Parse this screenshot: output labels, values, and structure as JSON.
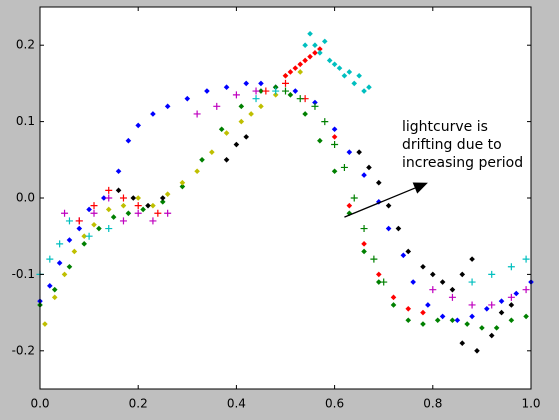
{
  "chart_data": {
    "type": "scatter",
    "title": "",
    "xlabel": "",
    "ylabel": "",
    "xlim": [
      0.0,
      1.0
    ],
    "ylim": [
      -0.25,
      0.25
    ],
    "xticks": [
      "0.0",
      "0.2",
      "0.4",
      "0.6",
      "0.8",
      "1.0"
    ],
    "yticks": [
      "-0.2",
      "-0.1",
      "0.0",
      "0.1",
      "0.2"
    ],
    "grid": false,
    "legend": "none",
    "annotation": {
      "lines": [
        "lightcurve is",
        "drifting due to",
        "increasing period"
      ],
      "arrow_from": [
        0.62,
        -0.025
      ],
      "arrow_to": [
        0.79,
        0.02
      ]
    },
    "series": [
      {
        "color": "#0000ff",
        "marker": "diamond",
        "points": [
          [
            0.0,
            -0.135
          ],
          [
            0.02,
            -0.115
          ],
          [
            0.04,
            -0.085
          ],
          [
            0.06,
            -0.055
          ],
          [
            0.08,
            -0.04
          ],
          [
            0.1,
            -0.015
          ],
          [
            0.13,
            0.0
          ],
          [
            0.16,
            0.035
          ],
          [
            0.18,
            0.075
          ],
          [
            0.2,
            0.095
          ],
          [
            0.23,
            0.11
          ],
          [
            0.26,
            0.12
          ],
          [
            0.3,
            0.13
          ],
          [
            0.34,
            0.14
          ],
          [
            0.38,
            0.145
          ],
          [
            0.42,
            0.15
          ],
          [
            0.45,
            0.15
          ],
          [
            0.48,
            0.145
          ],
          [
            0.52,
            0.14
          ],
          [
            0.56,
            0.125
          ],
          [
            0.6,
            0.09
          ],
          [
            0.63,
            0.06
          ],
          [
            0.66,
            0.03
          ],
          [
            0.69,
            -0.005
          ],
          [
            0.71,
            -0.04
          ],
          [
            0.74,
            -0.075
          ],
          [
            0.76,
            -0.11
          ],
          [
            0.79,
            -0.14
          ],
          [
            0.82,
            -0.155
          ],
          [
            0.85,
            -0.16
          ],
          [
            0.88,
            -0.155
          ],
          [
            0.91,
            -0.145
          ],
          [
            0.94,
            -0.135
          ],
          [
            0.97,
            -0.125
          ],
          [
            1.0,
            -0.11
          ]
        ]
      },
      {
        "color": "#008000",
        "marker": "diamond",
        "points": [
          [
            0.0,
            -0.14
          ],
          [
            0.03,
            -0.12
          ],
          [
            0.06,
            -0.09
          ],
          [
            0.09,
            -0.06
          ],
          [
            0.12,
            -0.04
          ],
          [
            0.15,
            -0.025
          ],
          [
            0.18,
            -0.02
          ],
          [
            0.21,
            -0.015
          ],
          [
            0.25,
            -0.005
          ],
          [
            0.29,
            0.015
          ],
          [
            0.33,
            0.05
          ],
          [
            0.37,
            0.09
          ],
          [
            0.41,
            0.12
          ],
          [
            0.45,
            0.14
          ],
          [
            0.48,
            0.145
          ],
          [
            0.51,
            0.135
          ],
          [
            0.54,
            0.11
          ],
          [
            0.57,
            0.075
          ],
          [
            0.6,
            0.035
          ],
          [
            0.63,
            -0.02
          ],
          [
            0.66,
            -0.07
          ],
          [
            0.69,
            -0.11
          ],
          [
            0.72,
            -0.14
          ],
          [
            0.75,
            -0.16
          ],
          [
            0.78,
            -0.165
          ],
          [
            0.81,
            -0.16
          ],
          [
            0.84,
            -0.16
          ],
          [
            0.87,
            -0.165
          ],
          [
            0.9,
            -0.17
          ],
          [
            0.93,
            -0.17
          ],
          [
            0.96,
            -0.16
          ],
          [
            0.99,
            -0.155
          ]
        ]
      },
      {
        "color": "#bfbf00",
        "marker": "diamond",
        "points": [
          [
            0.01,
            -0.165
          ],
          [
            0.03,
            -0.13
          ],
          [
            0.05,
            -0.1
          ],
          [
            0.07,
            -0.07
          ],
          [
            0.09,
            -0.05
          ],
          [
            0.11,
            -0.035
          ],
          [
            0.14,
            -0.015
          ],
          [
            0.17,
            -0.01
          ],
          [
            0.2,
            0.0
          ],
          [
            0.23,
            -0.01
          ],
          [
            0.26,
            0.005
          ],
          [
            0.29,
            0.02
          ],
          [
            0.32,
            0.035
          ],
          [
            0.35,
            0.06
          ],
          [
            0.38,
            0.085
          ],
          [
            0.41,
            0.1
          ],
          [
            0.43,
            0.11
          ],
          [
            0.45,
            0.12
          ],
          [
            0.48,
            0.135
          ],
          [
            0.5,
            0.16
          ],
          [
            0.53,
            0.165
          ]
        ]
      },
      {
        "color": "#ff0000",
        "marker": "diamond",
        "points": [
          [
            0.5,
            0.16
          ],
          [
            0.51,
            0.165
          ],
          [
            0.52,
            0.17
          ],
          [
            0.53,
            0.175
          ],
          [
            0.54,
            0.18
          ],
          [
            0.55,
            0.185
          ],
          [
            0.56,
            0.19
          ],
          [
            0.57,
            0.195
          ],
          [
            0.6,
            0.08
          ],
          [
            0.63,
            -0.01
          ],
          [
            0.66,
            -0.06
          ],
          [
            0.69,
            -0.1
          ],
          [
            0.72,
            -0.13
          ],
          [
            0.75,
            -0.145
          ],
          [
            0.78,
            -0.15
          ]
        ]
      },
      {
        "color": "#00bfbf",
        "marker": "diamond",
        "points": [
          [
            0.54,
            0.2
          ],
          [
            0.55,
            0.215
          ],
          [
            0.56,
            0.2
          ],
          [
            0.57,
            0.19
          ],
          [
            0.58,
            0.205
          ],
          [
            0.59,
            0.18
          ],
          [
            0.6,
            0.175
          ],
          [
            0.61,
            0.17
          ],
          [
            0.62,
            0.16
          ],
          [
            0.63,
            0.165
          ],
          [
            0.64,
            0.15
          ],
          [
            0.65,
            0.16
          ],
          [
            0.66,
            0.14
          ],
          [
            0.67,
            0.145
          ]
        ]
      },
      {
        "color": "#000000",
        "marker": "diamond",
        "points": [
          [
            0.16,
            0.01
          ],
          [
            0.19,
            0.0
          ],
          [
            0.22,
            -0.01
          ],
          [
            0.25,
            0.0
          ],
          [
            0.38,
            0.05
          ],
          [
            0.4,
            0.07
          ],
          [
            0.42,
            0.08
          ],
          [
            0.65,
            0.06
          ],
          [
            0.67,
            0.04
          ],
          [
            0.69,
            0.02
          ],
          [
            0.71,
            -0.01
          ],
          [
            0.73,
            -0.04
          ],
          [
            0.75,
            -0.07
          ],
          [
            0.78,
            -0.09
          ],
          [
            0.8,
            -0.1
          ],
          [
            0.82,
            -0.11
          ],
          [
            0.84,
            -0.12
          ],
          [
            0.86,
            -0.1
          ],
          [
            0.88,
            -0.08
          ],
          [
            0.86,
            -0.19
          ],
          [
            0.89,
            -0.2
          ],
          [
            0.92,
            -0.18
          ],
          [
            0.94,
            -0.15
          ],
          [
            0.96,
            -0.14
          ]
        ]
      },
      {
        "color": "#bf00bf",
        "marker": "plus",
        "points": [
          [
            0.05,
            -0.02
          ],
          [
            0.08,
            -0.03
          ],
          [
            0.11,
            -0.02
          ],
          [
            0.14,
            0.0
          ],
          [
            0.17,
            -0.03
          ],
          [
            0.2,
            -0.02
          ],
          [
            0.23,
            -0.03
          ],
          [
            0.26,
            -0.02
          ],
          [
            0.32,
            0.11
          ],
          [
            0.36,
            0.12
          ],
          [
            0.4,
            0.135
          ],
          [
            0.44,
            0.14
          ],
          [
            0.8,
            -0.12
          ],
          [
            0.84,
            -0.13
          ],
          [
            0.88,
            -0.14
          ],
          [
            0.92,
            -0.14
          ],
          [
            0.96,
            -0.13
          ],
          [
            0.99,
            -0.12
          ]
        ]
      },
      {
        "color": "#00bfbf",
        "marker": "plus",
        "points": [
          [
            0.0,
            -0.1
          ],
          [
            0.02,
            -0.08
          ],
          [
            0.04,
            -0.06
          ],
          [
            0.06,
            -0.03
          ],
          [
            0.1,
            -0.05
          ],
          [
            0.14,
            -0.04
          ],
          [
            0.44,
            0.13
          ],
          [
            0.48,
            0.14
          ],
          [
            0.88,
            -0.11
          ],
          [
            0.92,
            -0.1
          ],
          [
            0.96,
            -0.09
          ],
          [
            0.99,
            -0.08
          ]
        ]
      },
      {
        "color": "#ff0000",
        "marker": "plus",
        "points": [
          [
            0.08,
            -0.03
          ],
          [
            0.11,
            -0.01
          ],
          [
            0.14,
            0.01
          ],
          [
            0.17,
            0.0
          ],
          [
            0.2,
            -0.01
          ],
          [
            0.24,
            -0.02
          ],
          [
            0.46,
            0.14
          ],
          [
            0.5,
            0.15
          ],
          [
            0.54,
            0.13
          ]
        ]
      },
      {
        "color": "#008000",
        "marker": "plus",
        "points": [
          [
            0.56,
            0.12
          ],
          [
            0.58,
            0.1
          ],
          [
            0.6,
            0.07
          ],
          [
            0.62,
            0.04
          ],
          [
            0.64,
            0.0
          ],
          [
            0.66,
            -0.04
          ],
          [
            0.68,
            -0.08
          ],
          [
            0.7,
            -0.11
          ],
          [
            0.5,
            0.14
          ],
          [
            0.53,
            0.13
          ]
        ]
      }
    ]
  }
}
